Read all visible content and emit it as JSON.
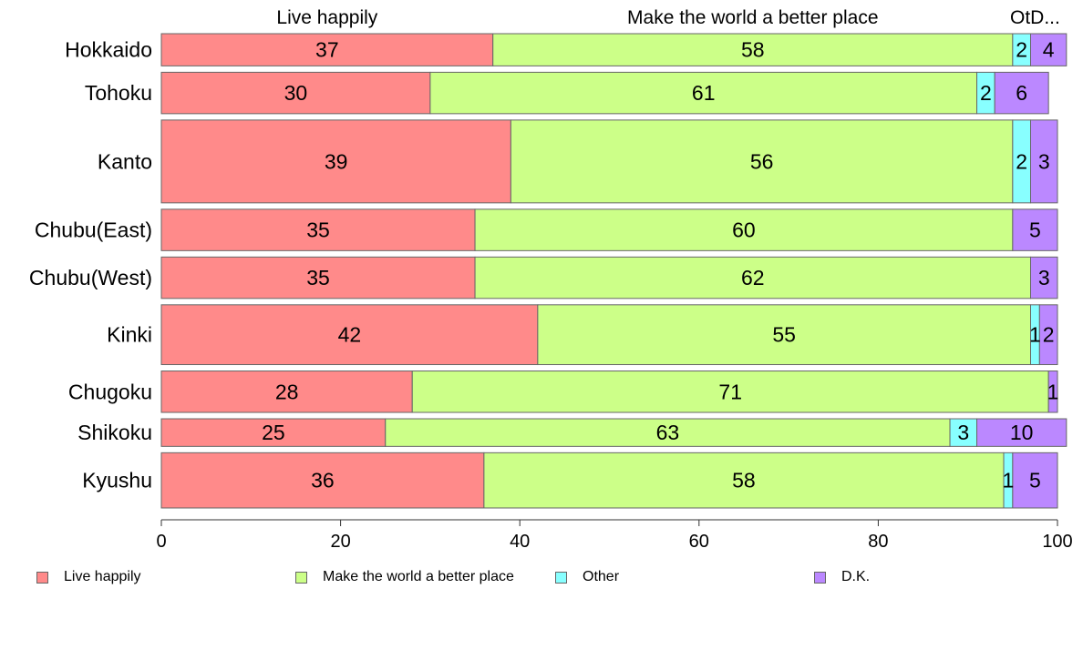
{
  "chart_data": {
    "type": "bar",
    "orientation": "horizontal",
    "stacked": true,
    "categories": [
      "Hokkaido",
      "Tohoku",
      "Kanto",
      "Chubu(East)",
      "Chubu(West)",
      "Kinki",
      "Chugoku",
      "Shikoku",
      "Kyushu"
    ],
    "series": [
      {
        "name": "Live happily",
        "color": "#FF8A8A",
        "values": [
          37,
          30,
          39,
          35,
          35,
          42,
          28,
          25,
          36
        ],
        "labels": [
          "37",
          "30",
          "39",
          "35",
          "35",
          "42",
          "28",
          "25",
          "36"
        ]
      },
      {
        "name": "Make the world a better place",
        "color": "#CCFF88",
        "values": [
          58,
          61,
          56,
          60,
          62,
          55,
          71,
          63,
          58
        ],
        "labels": [
          "58",
          "61",
          "56",
          "60",
          "62",
          "55",
          "71",
          "63",
          "58"
        ]
      },
      {
        "name": "Other",
        "color": "#88FFFF",
        "values": [
          2,
          2,
          2,
          0,
          0,
          1,
          0,
          3,
          1
        ],
        "labels": [
          "2",
          "2",
          "2",
          "",
          "",
          "1",
          "",
          "3",
          "1"
        ]
      },
      {
        "name": "D.K.",
        "color": "#BB88FF",
        "values": [
          4,
          6,
          3,
          5,
          3,
          2,
          1,
          10,
          5
        ],
        "labels": [
          "4",
          "6",
          "3",
          "5",
          "3",
          "2",
          "1",
          "10",
          "5"
        ]
      }
    ],
    "relative_widths": [
      7,
      9,
      18,
      9,
      9,
      13,
      9,
      6,
      12
    ],
    "top_labels": [
      "Live happily",
      "Make the world a better place",
      "OtD..."
    ],
    "xlim": [
      0,
      100
    ],
    "xticks": [
      0,
      20,
      40,
      60,
      80,
      100
    ],
    "xtick_labels": [
      "0",
      "20",
      "40",
      "60",
      "80",
      "100"
    ],
    "title": "",
    "xlabel": "",
    "ylabel": "",
    "grid": false,
    "legend": {
      "position": "bottom",
      "labels": [
        "Live happily",
        "Make the world a better place",
        "Other",
        "D.K."
      ]
    }
  }
}
